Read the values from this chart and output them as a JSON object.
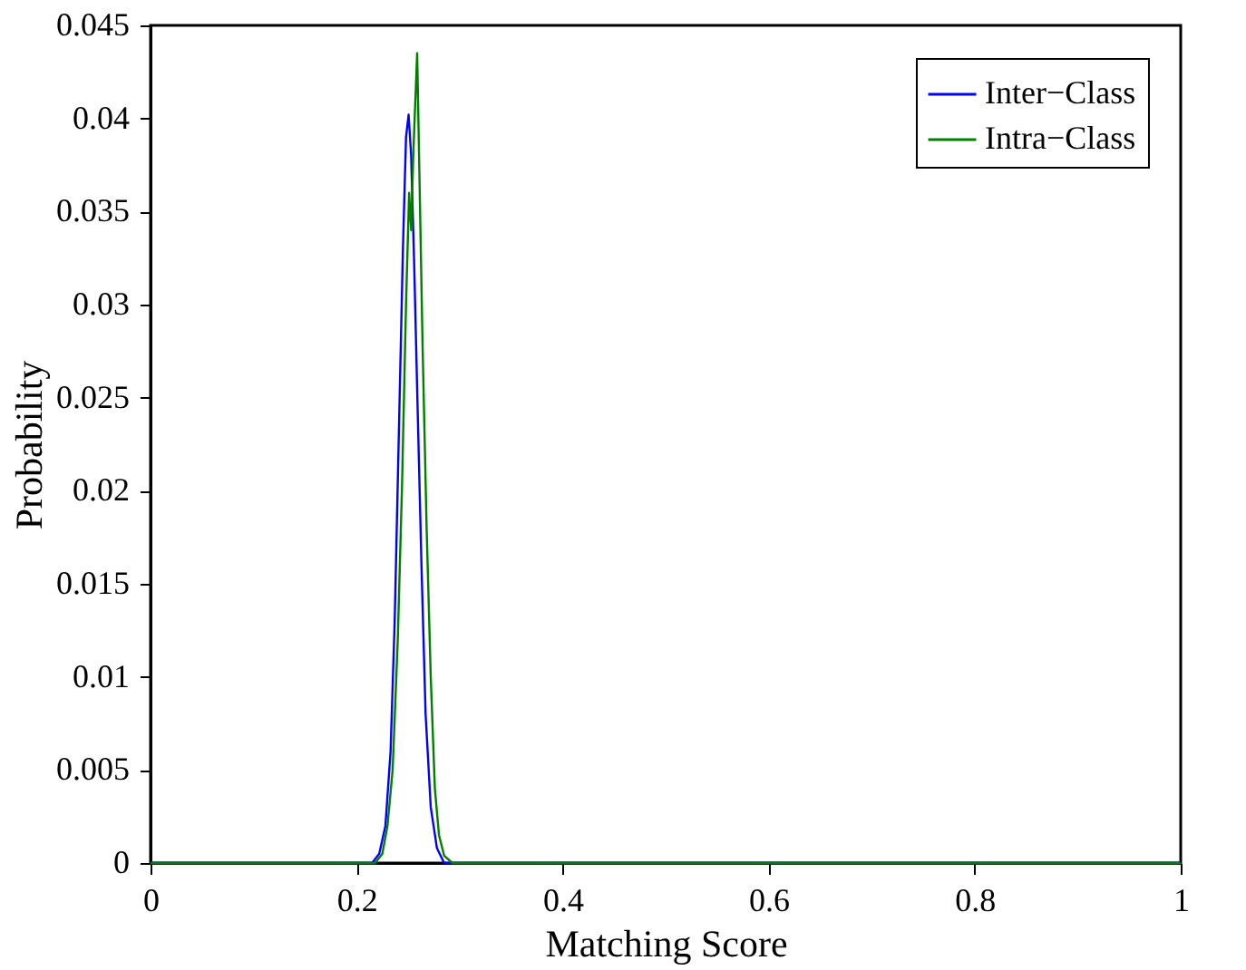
{
  "chart_data": {
    "type": "line",
    "xlabel": "Matching Score",
    "ylabel": "Probability",
    "xlim": [
      0,
      1
    ],
    "xticks": [
      0,
      0.2,
      0.4,
      0.6,
      0.8,
      1
    ],
    "ylim": [
      0,
      0.045
    ],
    "yticks": [
      0,
      0.005,
      0.01,
      0.015,
      0.02,
      0.025,
      0.03,
      0.035,
      0.04,
      0.045
    ],
    "grid": false,
    "legend": "top right",
    "marker": "none",
    "line_style": "solid",
    "series": [
      {
        "name": "Inter−Class",
        "color": "#0000ff",
        "x": [
          0,
          0.2,
          0.215,
          0.222,
          0.228,
          0.233,
          0.237,
          0.241,
          0.245,
          0.248,
          0.2505,
          0.253,
          0.256,
          0.259,
          0.263,
          0.267,
          0.272,
          0.278,
          0.285,
          1
        ],
        "values": [
          0,
          0,
          0,
          0.0005,
          0.002,
          0.006,
          0.013,
          0.023,
          0.033,
          0.039,
          0.0402,
          0.038,
          0.032,
          0.025,
          0.016,
          0.008,
          0.003,
          0.0008,
          0,
          0
        ]
      },
      {
        "name": "Intra−Class",
        "color": "#008000",
        "x": [
          0,
          0.218,
          0.225,
          0.23,
          0.235,
          0.24,
          0.244,
          0.248,
          0.251,
          0.253,
          0.255,
          0.2588,
          0.261,
          0.264,
          0.268,
          0.272,
          0.276,
          0.28,
          0.285,
          0.293,
          1
        ],
        "values": [
          0,
          0,
          0.0005,
          0.002,
          0.005,
          0.012,
          0.02,
          0.03,
          0.036,
          0.034,
          0.038,
          0.0435,
          0.037,
          0.028,
          0.018,
          0.01,
          0.004,
          0.0015,
          0.0004,
          0,
          0
        ]
      }
    ]
  }
}
